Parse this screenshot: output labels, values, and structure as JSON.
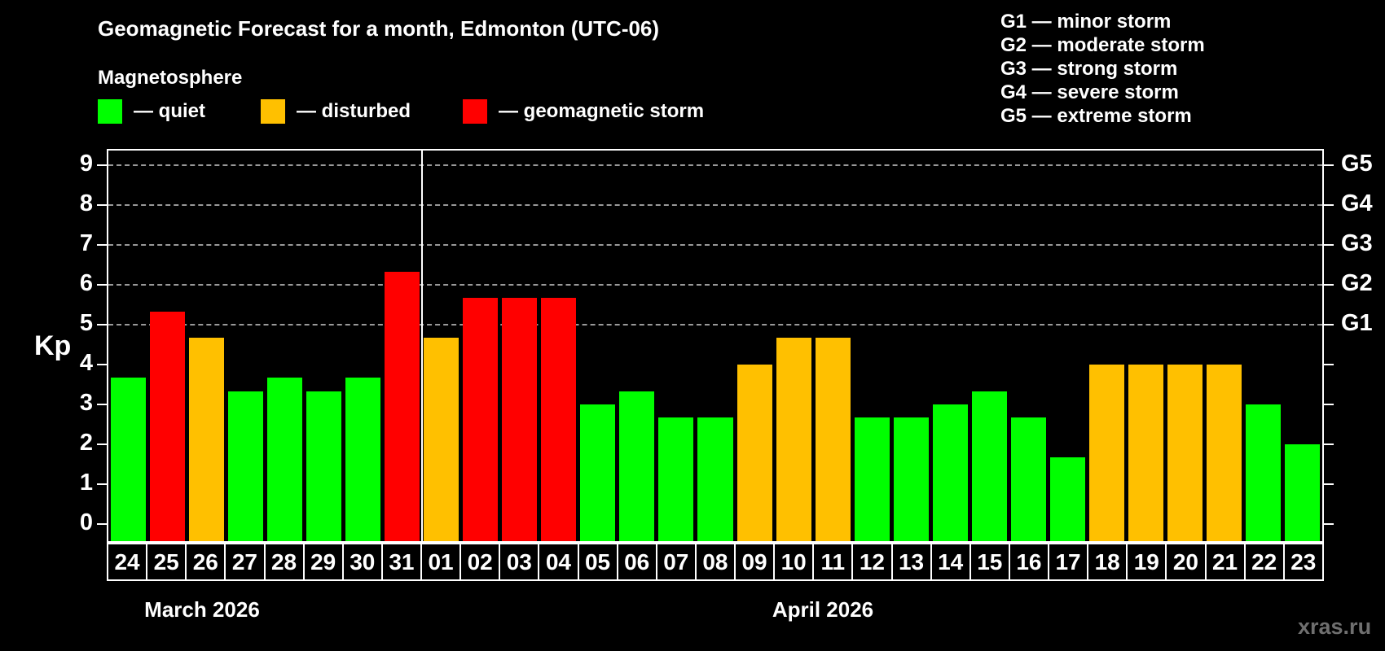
{
  "header": {
    "title": "Geomagnetic Forecast for a month, Edmonton (UTC-06)",
    "subtitle": "Magnetosphere"
  },
  "legend": {
    "items": [
      {
        "label": "— quiet",
        "status": "quiet"
      },
      {
        "label": "— disturbed",
        "status": "disturbed"
      },
      {
        "label": "— geomagnetic storm",
        "status": "storm"
      }
    ]
  },
  "storm_scale_legend": {
    "lines": [
      "G1 — minor storm",
      "G2 — moderate storm",
      "G3 — strong storm",
      "G4 — severe storm",
      "G5 — extreme storm"
    ]
  },
  "colors": {
    "quiet": "#00ff00",
    "disturbed": "#ffc000",
    "storm": "#ff0000",
    "gridline": "#999999",
    "axis": "#ffffff",
    "watermark": "#6f6f6f"
  },
  "chart_data": {
    "type": "bar",
    "title": "Geomagnetic Forecast for a month, Edmonton (UTC-06)",
    "xlabel": "",
    "ylabel": "Kp",
    "ylim": [
      0,
      9.5
    ],
    "y_ticks": [
      0,
      1,
      2,
      3,
      4,
      5,
      6,
      7,
      8,
      9
    ],
    "gridlines_at_kp": [
      5,
      6,
      7,
      8,
      9
    ],
    "grid": "dashed-horizontal-G-levels-only",
    "legend_position": "top",
    "right_axis_labels": [
      {
        "kp": 5,
        "label": "G1"
      },
      {
        "kp": 6,
        "label": "G2"
      },
      {
        "kp": 7,
        "label": "G3"
      },
      {
        "kp": 8,
        "label": "G4"
      },
      {
        "kp": 9,
        "label": "G5"
      }
    ],
    "months": [
      {
        "label": "March 2026",
        "days": [
          {
            "date": "24",
            "kp": 3.67,
            "status": "quiet"
          },
          {
            "date": "25",
            "kp": 5.33,
            "status": "storm"
          },
          {
            "date": "26",
            "kp": 4.67,
            "status": "disturbed"
          },
          {
            "date": "27",
            "kp": 3.33,
            "status": "quiet"
          },
          {
            "date": "28",
            "kp": 3.67,
            "status": "quiet"
          },
          {
            "date": "29",
            "kp": 3.33,
            "status": "quiet"
          },
          {
            "date": "30",
            "kp": 3.67,
            "status": "quiet"
          },
          {
            "date": "31",
            "kp": 6.33,
            "status": "storm"
          }
        ]
      },
      {
        "label": "April 2026",
        "days": [
          {
            "date": "01",
            "kp": 4.67,
            "status": "disturbed"
          },
          {
            "date": "02",
            "kp": 5.67,
            "status": "storm"
          },
          {
            "date": "03",
            "kp": 5.67,
            "status": "storm"
          },
          {
            "date": "04",
            "kp": 5.67,
            "status": "storm"
          },
          {
            "date": "05",
            "kp": 3.0,
            "status": "quiet"
          },
          {
            "date": "06",
            "kp": 3.33,
            "status": "quiet"
          },
          {
            "date": "07",
            "kp": 2.67,
            "status": "quiet"
          },
          {
            "date": "08",
            "kp": 2.67,
            "status": "quiet"
          },
          {
            "date": "09",
            "kp": 4.0,
            "status": "disturbed"
          },
          {
            "date": "10",
            "kp": 4.67,
            "status": "disturbed"
          },
          {
            "date": "11",
            "kp": 4.67,
            "status": "disturbed"
          },
          {
            "date": "12",
            "kp": 2.67,
            "status": "quiet"
          },
          {
            "date": "13",
            "kp": 2.67,
            "status": "quiet"
          },
          {
            "date": "14",
            "kp": 3.0,
            "status": "quiet"
          },
          {
            "date": "15",
            "kp": 3.33,
            "status": "quiet"
          },
          {
            "date": "16",
            "kp": 2.67,
            "status": "quiet"
          },
          {
            "date": "17",
            "kp": 1.67,
            "status": "quiet"
          },
          {
            "date": "18",
            "kp": 4.0,
            "status": "disturbed"
          },
          {
            "date": "19",
            "kp": 4.0,
            "status": "disturbed"
          },
          {
            "date": "20",
            "kp": 4.0,
            "status": "disturbed"
          },
          {
            "date": "21",
            "kp": 4.0,
            "status": "disturbed"
          },
          {
            "date": "22",
            "kp": 3.0,
            "status": "quiet"
          },
          {
            "date": "23",
            "kp": 2.0,
            "status": "quiet"
          }
        ]
      }
    ]
  },
  "watermark": "xras.ru"
}
